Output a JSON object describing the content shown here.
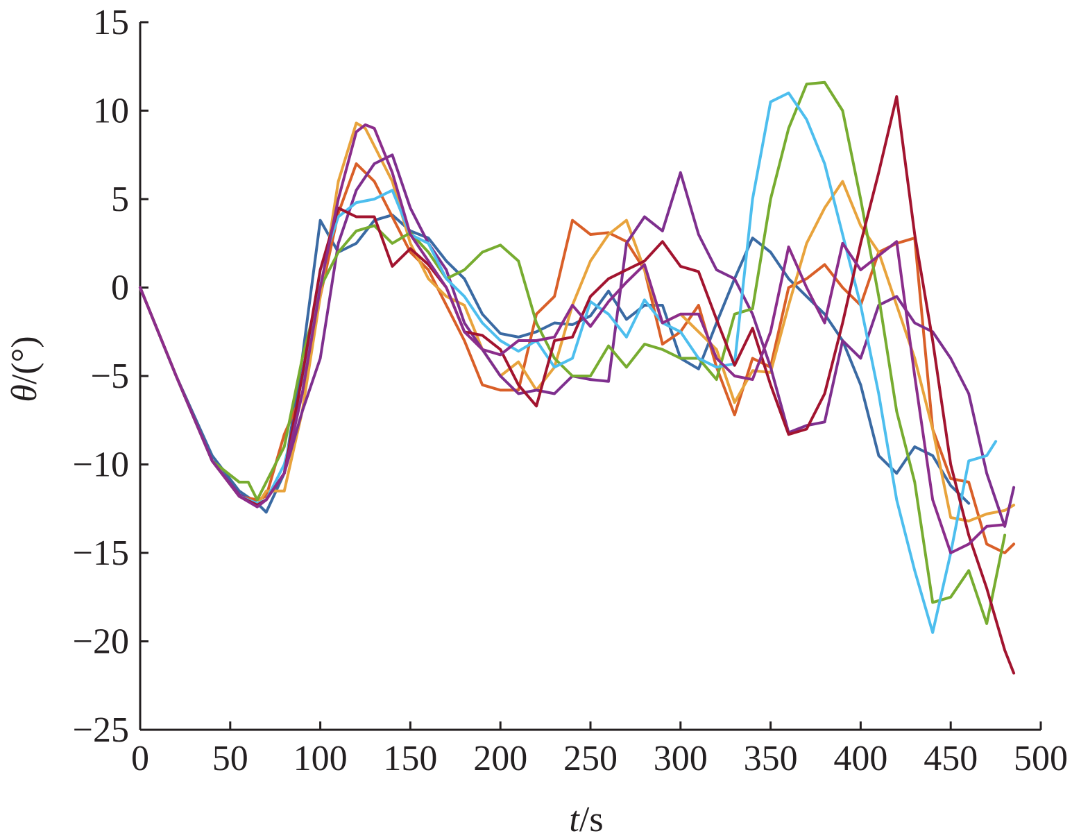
{
  "chart_data": {
    "type": "line",
    "title": "",
    "xlabel": {
      "var": "t",
      "unit": "/s"
    },
    "ylabel": {
      "var": "θ",
      "unit": "/(°)"
    },
    "xlim": [
      0,
      500
    ],
    "ylim": [
      -25,
      15
    ],
    "xticks": [
      0,
      50,
      100,
      150,
      200,
      250,
      300,
      350,
      400,
      450,
      500
    ],
    "yticks": [
      15,
      10,
      5,
      0,
      -5,
      -10,
      -15,
      -20,
      -25
    ],
    "ytick_labels": [
      "15",
      "10",
      "5",
      "0",
      "−5",
      "−10",
      "−15",
      "−20",
      "−25"
    ],
    "grid": false,
    "legend": "none",
    "series": [
      {
        "color": "#3a6aa3",
        "x": [
          0,
          20,
          40,
          55,
          65,
          70,
          80,
          90,
          100,
          110,
          120,
          130,
          140,
          150,
          160,
          170,
          180,
          190,
          200,
          210,
          220,
          230,
          240,
          250,
          260,
          270,
          280,
          290,
          300,
          310,
          320,
          330,
          340,
          350,
          360,
          370,
          380,
          390,
          400,
          410,
          420,
          430,
          440,
          450,
          460
        ],
        "y": [
          0,
          -5,
          -9.5,
          -11.5,
          -12.2,
          -12.7,
          -10.5,
          -4,
          3.8,
          2,
          2.5,
          3.8,
          4.1,
          3.2,
          2.8,
          1.5,
          0.5,
          -1.5,
          -2.6,
          -2.8,
          -2.5,
          -2,
          -2.1,
          -1.6,
          -0.2,
          -1.8,
          -1,
          -1,
          -4,
          -4.6,
          -2,
          0.5,
          2.8,
          2,
          0.5,
          -0.5,
          -1.5,
          -3,
          -5.5,
          -9.5,
          -10.5,
          -9,
          -9.5,
          -11.2,
          -12.2
        ]
      },
      {
        "color": "#d95f28",
        "x": [
          0,
          20,
          40,
          55,
          65,
          70,
          80,
          90,
          100,
          110,
          120,
          130,
          140,
          150,
          160,
          170,
          180,
          190,
          200,
          210,
          220,
          230,
          240,
          250,
          260,
          270,
          280,
          290,
          300,
          310,
          320,
          330,
          340,
          350,
          360,
          370,
          380,
          390,
          400,
          410,
          420,
          430,
          440,
          450,
          460,
          470,
          480,
          485
        ],
        "y": [
          0,
          -5,
          -9.8,
          -11.8,
          -12,
          -11.8,
          -8.3,
          -6,
          -0.5,
          4.2,
          7,
          6,
          4,
          2,
          1,
          -1,
          -3,
          -5.5,
          -5.8,
          -5.8,
          -1.5,
          -0.5,
          3.8,
          3,
          3.1,
          2.6,
          1,
          -3.2,
          -2.5,
          -1,
          -4.5,
          -7.2,
          -4,
          -4.5,
          0,
          0.5,
          1.3,
          0,
          -1,
          2,
          2.5,
          2.8,
          -8,
          -10.8,
          -11,
          -14.5,
          -15,
          -14.5
        ]
      },
      {
        "color": "#e8a33c",
        "x": [
          0,
          20,
          40,
          55,
          65,
          70,
          80,
          90,
          100,
          110,
          120,
          125,
          130,
          140,
          150,
          160,
          170,
          180,
          190,
          200,
          210,
          220,
          230,
          240,
          250,
          260,
          270,
          280,
          290,
          300,
          310,
          320,
          330,
          340,
          350,
          360,
          370,
          380,
          390,
          400,
          410,
          420,
          430,
          440,
          450,
          460,
          470,
          480,
          485
        ],
        "y": [
          0,
          -5,
          -9.8,
          -11.8,
          -12.3,
          -11.5,
          -11.5,
          -7,
          -0.5,
          6,
          9.3,
          9,
          8,
          6,
          2.5,
          0.5,
          -0.5,
          -1,
          -3.5,
          -5,
          -4.2,
          -5.8,
          -4.5,
          -1,
          1.5,
          3,
          3.8,
          1,
          -2,
          -1.5,
          -2.5,
          -3.5,
          -6.5,
          -4.7,
          -4.8,
          -1,
          2.5,
          4.5,
          6,
          3.5,
          2,
          -1,
          -4,
          -8,
          -13,
          -13.2,
          -12.8,
          -12.6,
          -12.3
        ]
      },
      {
        "color": "#7e2f8e",
        "x": [
          0,
          20,
          40,
          55,
          65,
          70,
          80,
          90,
          100,
          110,
          120,
          130,
          140,
          150,
          160,
          170,
          180,
          190,
          200,
          210,
          220,
          230,
          240,
          250,
          260,
          270,
          280,
          290,
          300,
          310,
          320,
          330,
          340,
          350,
          360,
          370,
          380,
          390,
          400,
          410,
          420,
          430,
          440,
          450,
          460,
          470,
          480,
          485
        ],
        "y": [
          0,
          -5,
          -9.8,
          -11.7,
          -12.3,
          -12,
          -10.5,
          -7,
          -4,
          2.5,
          5.5,
          7,
          7.5,
          4.5,
          2.5,
          1,
          -2,
          -3.5,
          -5,
          -6,
          -5.8,
          -6,
          -5,
          -5.2,
          -5.3,
          2.5,
          4,
          3.2,
          6.5,
          3,
          1,
          0.5,
          -1.5,
          -4.5,
          -8.2,
          -7.8,
          -7.6,
          -3,
          -4,
          -1,
          -0.5,
          -2,
          -2.5,
          -4,
          -6,
          -10.5,
          -13.5,
          -11.3
        ]
      },
      {
        "color": "#77ac30",
        "x": [
          0,
          20,
          40,
          55,
          60,
          65,
          70,
          80,
          90,
          100,
          110,
          120,
          130,
          140,
          150,
          160,
          170,
          180,
          190,
          200,
          210,
          220,
          230,
          240,
          250,
          260,
          270,
          280,
          290,
          300,
          310,
          320,
          330,
          340,
          350,
          360,
          370,
          380,
          390,
          400,
          410,
          420,
          430,
          440,
          450,
          460,
          470,
          480
        ],
        "y": [
          0,
          -5,
          -9.8,
          -11,
          -11,
          -12,
          -11,
          -9,
          -4,
          0,
          2,
          3.2,
          3.5,
          2.5,
          3.1,
          2,
          0.5,
          1,
          2,
          2.4,
          1.5,
          -2,
          -4,
          -5,
          -5,
          -3.3,
          -4.5,
          -3.2,
          -3.5,
          -4,
          -4,
          -5.2,
          -1.5,
          -1.2,
          5,
          9,
          11.5,
          11.6,
          10,
          5,
          -0.5,
          -7,
          -11,
          -17.8,
          -17.5,
          -16,
          -19,
          -14
        ]
      },
      {
        "color": "#4dbeee",
        "x": [
          0,
          20,
          40,
          55,
          65,
          70,
          80,
          90,
          100,
          110,
          120,
          130,
          140,
          150,
          160,
          170,
          180,
          190,
          200,
          210,
          220,
          230,
          240,
          250,
          260,
          270,
          280,
          290,
          300,
          310,
          320,
          330,
          340,
          350,
          360,
          370,
          380,
          390,
          400,
          410,
          420,
          430,
          440,
          450,
          460,
          470,
          475
        ],
        "y": [
          0,
          -5,
          -9.8,
          -11.8,
          -12.2,
          -12,
          -10,
          -6,
          1,
          4,
          4.8,
          5,
          5.5,
          3,
          2.5,
          0.5,
          -0.5,
          -2,
          -3,
          -3.6,
          -3,
          -4.5,
          -4,
          -0.8,
          -1.5,
          -2.8,
          -0.7,
          -2,
          -2.5,
          -4,
          -4.5,
          -4.3,
          5,
          10.5,
          11,
          9.5,
          7,
          3,
          -1,
          -6,
          -12,
          -16,
          -19.5,
          -15,
          -9.8,
          -9.5,
          -8.7
        ]
      },
      {
        "color": "#a2142f",
        "x": [
          0,
          20,
          40,
          55,
          65,
          70,
          80,
          90,
          100,
          110,
          120,
          130,
          140,
          150,
          160,
          170,
          180,
          190,
          200,
          210,
          220,
          230,
          240,
          250,
          260,
          270,
          280,
          290,
          300,
          310,
          320,
          330,
          340,
          350,
          360,
          370,
          380,
          390,
          400,
          410,
          420,
          430,
          440,
          450,
          460,
          470,
          480,
          485
        ],
        "y": [
          0,
          -5,
          -9.8,
          -11.8,
          -12.3,
          -12,
          -10.5,
          -5,
          1,
          4.5,
          4,
          4,
          1.2,
          2.2,
          1.3,
          0,
          -2.5,
          -2.7,
          -3.5,
          -5.5,
          -6.7,
          -3,
          -2.8,
          -0.5,
          0.5,
          1,
          1.5,
          2.6,
          1.2,
          0.9,
          -1.8,
          -4.4,
          -2.3,
          -5.5,
          -8.3,
          -8,
          -6,
          -2,
          2.5,
          6.5,
          10.8,
          3,
          -3,
          -10,
          -14,
          -17,
          -20.5,
          -21.8
        ]
      },
      {
        "color": "#8b2d8b",
        "x": [
          0,
          20,
          40,
          55,
          65,
          70,
          80,
          90,
          100,
          110,
          120,
          125,
          130,
          140,
          150,
          160,
          170,
          180,
          190,
          200,
          210,
          220,
          230,
          240,
          250,
          260,
          270,
          280,
          290,
          300,
          310,
          320,
          330,
          340,
          350,
          360,
          370,
          380,
          390,
          400,
          410,
          420,
          430,
          440,
          450,
          460,
          470,
          480
        ],
        "y": [
          0,
          -5,
          -9.8,
          -11.8,
          -12.4,
          -12,
          -10.5,
          -6,
          0,
          5,
          8.8,
          9.2,
          9,
          6.5,
          3,
          1.5,
          0,
          -2.5,
          -3.5,
          -3.8,
          -3,
          -3,
          -2.8,
          -1,
          -2.2,
          -0.8,
          0.3,
          1.3,
          -2,
          -1.5,
          -1.5,
          -4,
          -5,
          -5.2,
          -2.5,
          2.3,
          0,
          -2,
          2.5,
          1,
          1.8,
          2.6,
          -5,
          -12,
          -15,
          -14.5,
          -13.5,
          -13.4
        ]
      }
    ]
  }
}
